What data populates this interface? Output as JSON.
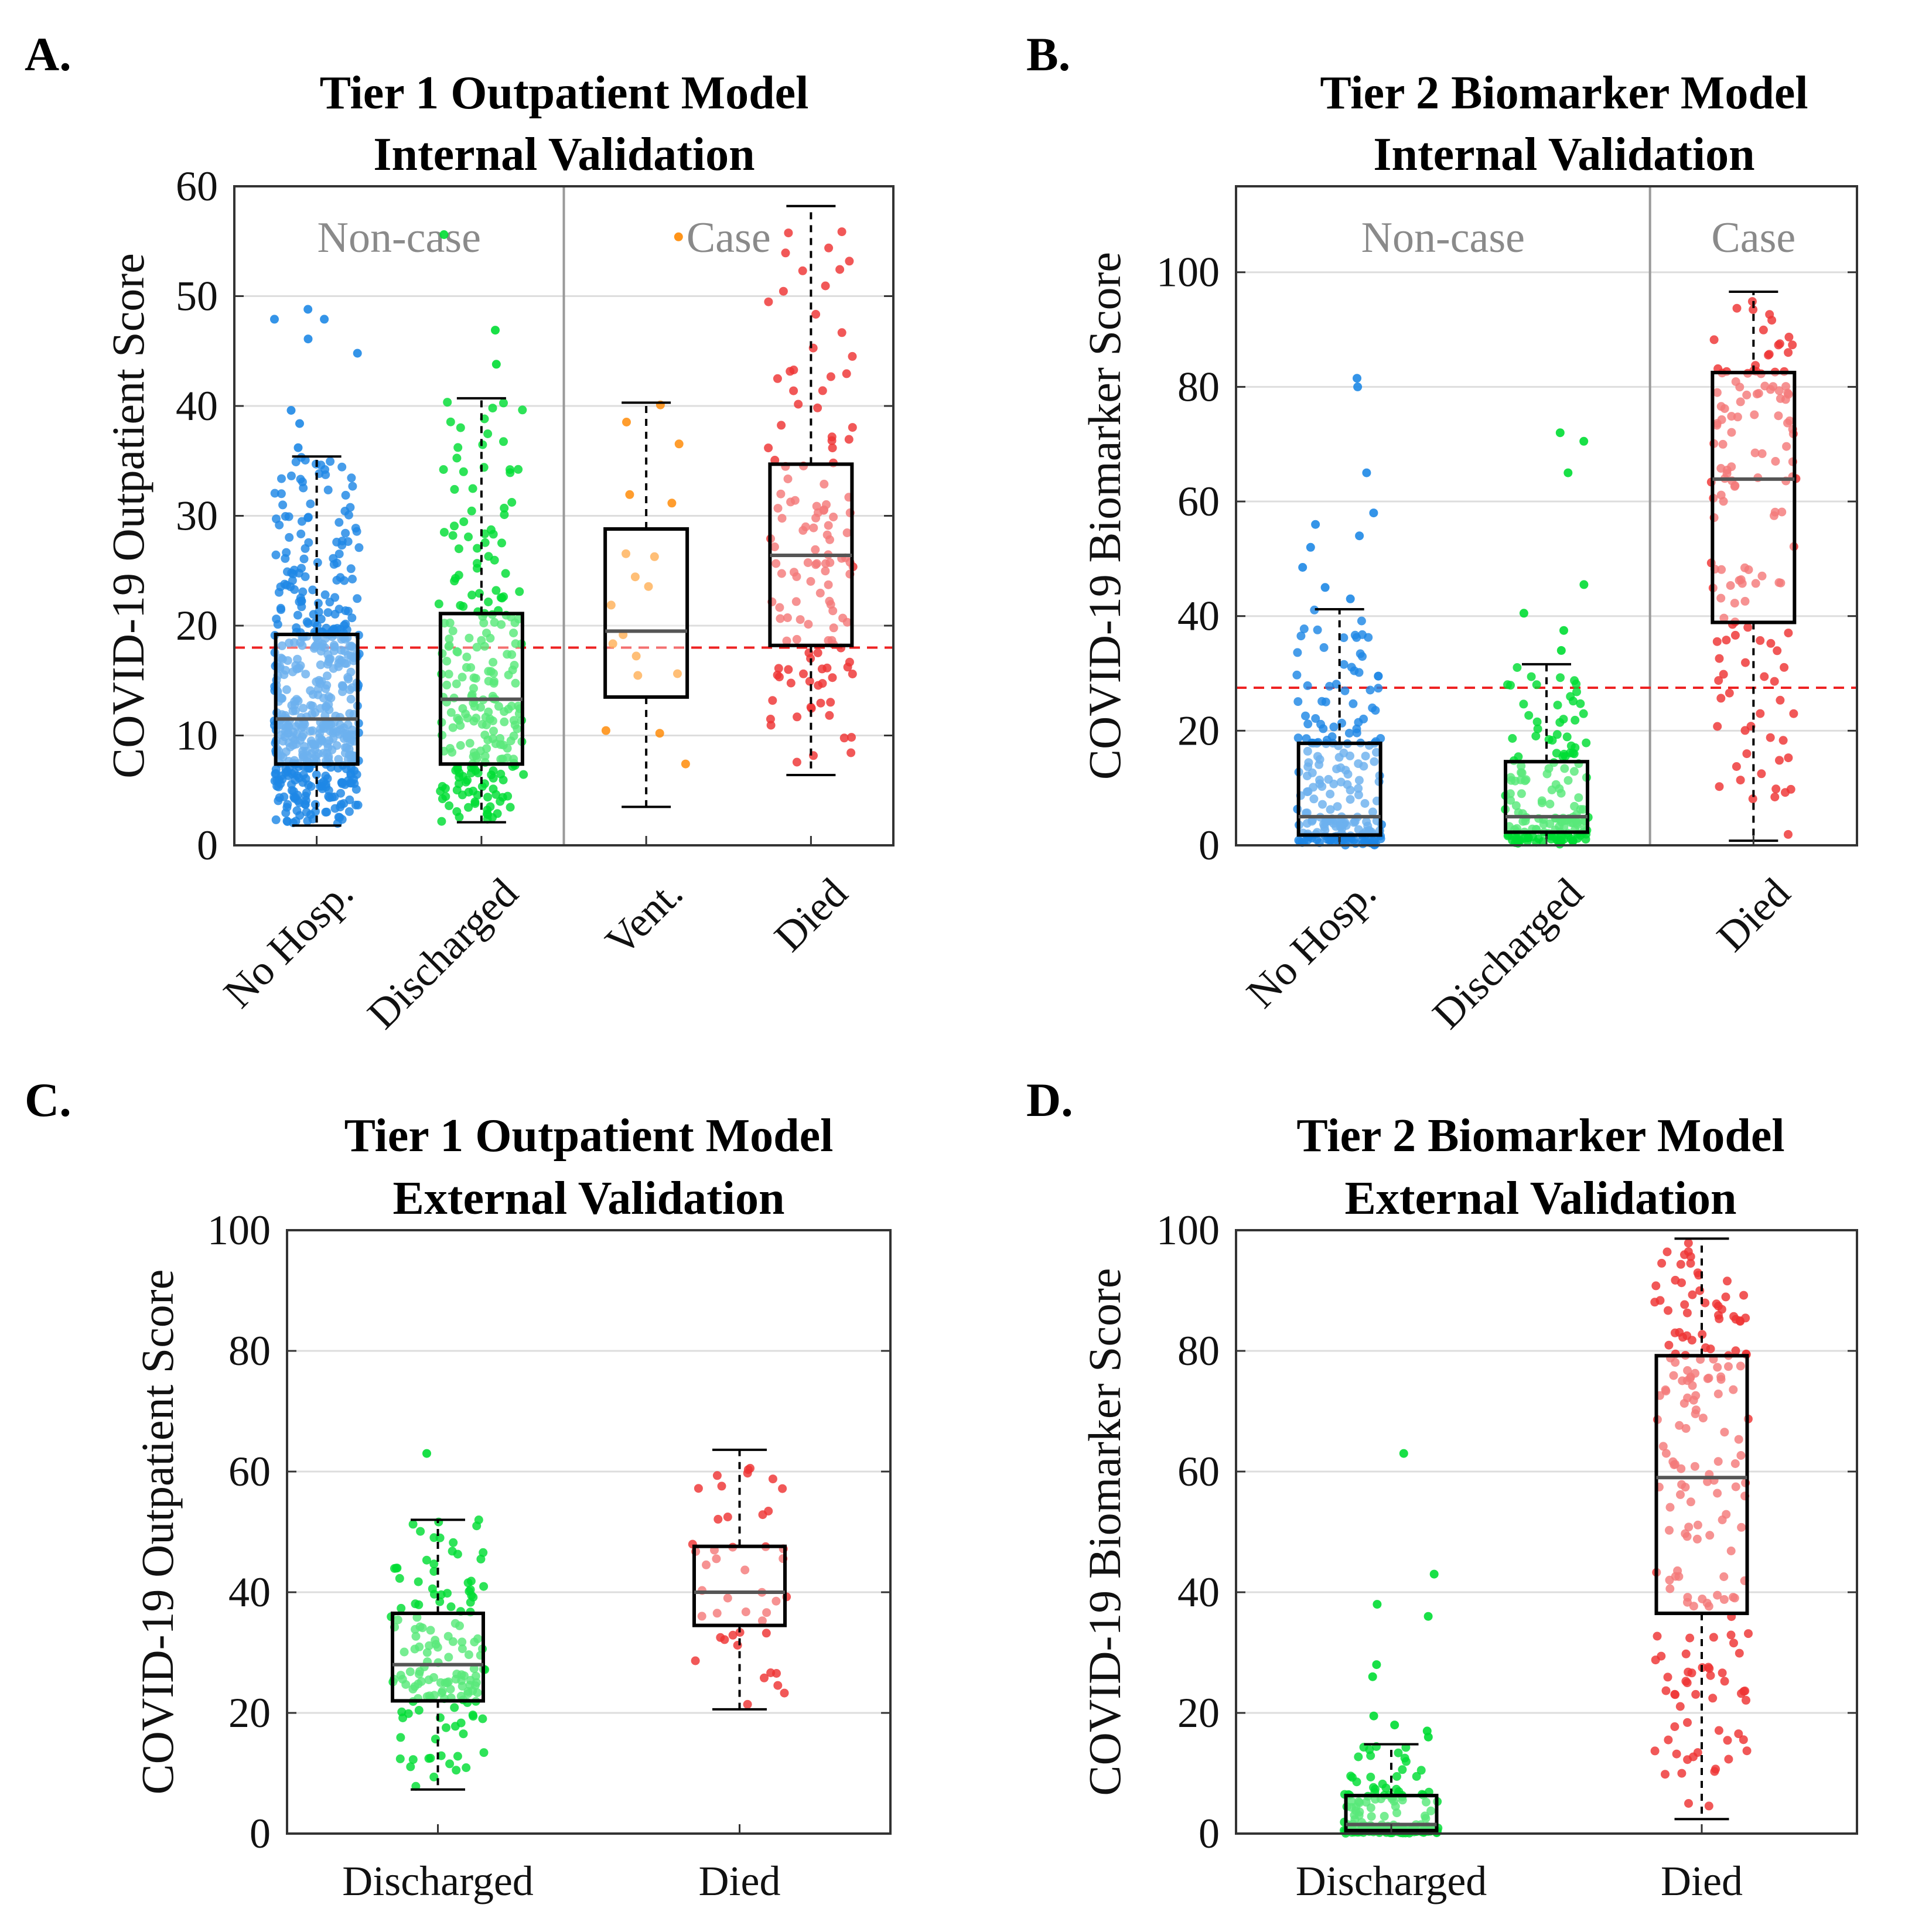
{
  "colors": {
    "noHosp": "#1e88e5",
    "discharged": "#00dd33",
    "vent": "#ff8800",
    "died": "#ee3333",
    "threshold": "#ee2222",
    "divider": "#999999",
    "groupLabel": "#8a8a8a",
    "grid": "#dddddd",
    "median": "#555555"
  },
  "chart_data": [
    {
      "panel_label": "A.",
      "type": "box",
      "title": [
        "Tier 1 Outpatient Model",
        "Internal Validation"
      ],
      "ylabel": "COVID-19 Outpatient Score",
      "ylim": [
        0,
        60
      ],
      "yticks": [
        0,
        10,
        20,
        30,
        40,
        50,
        60
      ],
      "threshold": 18,
      "rotate_xticks": true,
      "divider_after": 2,
      "group_labels": [
        {
          "text": "Non-case",
          "from": 1,
          "to": 2
        },
        {
          "text": "Case",
          "from": 3,
          "to": 4
        }
      ],
      "categories": [
        "No Hosp.",
        "Discharged",
        "Vent.",
        "Died"
      ],
      "boxes": [
        {
          "category": "No Hosp.",
          "color_key": "noHosp",
          "q1": 7.4,
          "median": 11.5,
          "q3": 19.2,
          "whisker_low": 1.8,
          "whisker_high": 35.4,
          "n": 520,
          "outliers": [
            36.2,
            38.4,
            39.6,
            44.8,
            46.1,
            47.9,
            47.9,
            48.8
          ]
        },
        {
          "category": "Discharged",
          "color_key": "discharged",
          "q1": 7.4,
          "median": 13.3,
          "q3": 21.1,
          "whisker_low": 2.1,
          "whisker_high": 40.7,
          "n": 240,
          "outliers": [
            43.8,
            46.9,
            55.6
          ]
        },
        {
          "category": "Vent.",
          "color_key": "vent",
          "q1": 13.5,
          "median": 19.5,
          "q3": 28.8,
          "whisker_low": 3.5,
          "whisker_high": 40.3,
          "n": 18,
          "outliers": [
            55.4
          ]
        },
        {
          "category": "Died",
          "color_key": "died",
          "q1": 18.2,
          "median": 26.4,
          "q3": 34.7,
          "whisker_low": 6.4,
          "whisker_high": 58.2,
          "n": 130,
          "outliers": []
        }
      ]
    },
    {
      "panel_label": "B.",
      "type": "box",
      "title": [
        "Tier 2 Biomarker Model",
        "Internal Validation"
      ],
      "ylabel": "COVID-19 Biomarker Score",
      "ylim": [
        0,
        115
      ],
      "yticks": [
        0,
        20,
        40,
        60,
        80,
        100
      ],
      "threshold": 27.5,
      "rotate_xticks": true,
      "divider_after": 2,
      "group_labels": [
        {
          "text": "Non-case",
          "from": 1,
          "to": 2
        },
        {
          "text": "Case",
          "from": 3,
          "to": 3
        }
      ],
      "categories": [
        "No Hosp.",
        "Discharged",
        "Died"
      ],
      "boxes": [
        {
          "category": "No Hosp.",
          "color_key": "noHosp",
          "q1": 1.8,
          "median": 5.0,
          "q3": 17.8,
          "whisker_low": 0.0,
          "whisker_high": 41.2,
          "n": 210,
          "outliers": [
            43.0,
            45.0,
            48.5,
            52.0,
            54.0,
            56.0,
            58.0,
            65.0,
            80.0,
            81.5
          ]
        },
        {
          "category": "Discharged",
          "color_key": "discharged",
          "q1": 2.3,
          "median": 5.0,
          "q3": 14.6,
          "whisker_low": 0.0,
          "whisker_high": 31.6,
          "n": 160,
          "outliers": [
            34.0,
            37.5,
            40.5,
            45.5,
            65.0,
            70.5,
            72.0
          ]
        },
        {
          "category": "Died",
          "color_key": "died",
          "q1": 38.9,
          "median": 63.9,
          "q3": 82.5,
          "whisker_low": 0.8,
          "whisker_high": 96.6,
          "n": 140,
          "outliers": []
        }
      ]
    },
    {
      "panel_label": "C.",
      "type": "box",
      "title": [
        "Tier 1 Outpatient Model",
        "External Validation"
      ],
      "ylabel": "COVID-19 Outpatient Score",
      "ylim": [
        0,
        100
      ],
      "yticks": [
        0,
        20,
        40,
        60,
        80,
        100
      ],
      "threshold": null,
      "rotate_xticks": false,
      "divider_after": null,
      "group_labels": [],
      "categories": [
        "Discharged",
        "Died"
      ],
      "boxes": [
        {
          "category": "Discharged",
          "color_key": "discharged",
          "q1": 22.0,
          "median": 28.0,
          "q3": 36.5,
          "whisker_low": 7.3,
          "whisker_high": 52.0,
          "n": 150,
          "outliers": [
            63.0
          ]
        },
        {
          "category": "Died",
          "color_key": "died",
          "q1": 34.5,
          "median": 40.0,
          "q3": 47.6,
          "whisker_low": 20.6,
          "whisker_high": 63.6,
          "n": 45,
          "outliers": []
        }
      ]
    },
    {
      "panel_label": "D.",
      "type": "box",
      "title": [
        "Tier 2 Biomarker Model",
        "External Validation"
      ],
      "ylabel": "COVID-19 Biomarker Score",
      "ylim": [
        0,
        100
      ],
      "yticks": [
        0,
        20,
        40,
        60,
        80,
        100
      ],
      "threshold": null,
      "rotate_xticks": false,
      "divider_after": null,
      "group_labels": [],
      "categories": [
        "Discharged",
        "Died"
      ],
      "boxes": [
        {
          "category": "Discharged",
          "color_key": "discharged",
          "q1": 0.5,
          "median": 1.5,
          "q3": 6.3,
          "whisker_low": 0.0,
          "whisker_high": 14.8,
          "n": 150,
          "outliers": [
            16.0,
            17.0,
            18.0,
            19.5,
            26.0,
            28.0,
            36.0,
            38.0,
            43.0,
            63.0
          ]
        },
        {
          "category": "Died",
          "color_key": "died",
          "q1": 36.5,
          "median": 59.0,
          "q3": 79.2,
          "whisker_low": 2.4,
          "whisker_high": 98.6,
          "n": 190,
          "outliers": []
        }
      ]
    }
  ]
}
